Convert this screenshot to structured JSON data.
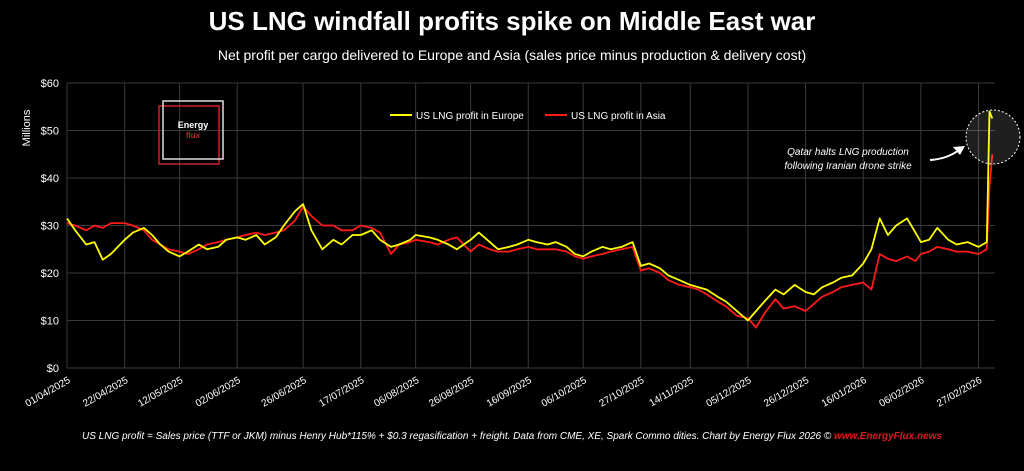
{
  "chart_data": {
    "type": "line",
    "title": "US LNG windfall profits spike on Middle East war",
    "subtitle": "Net profit per cargo delivered to Europe and Asia (sales price minus production & delivery cost)",
    "ylabel": "Millions",
    "ylim": [
      0,
      60
    ],
    "y_ticks": [
      "$0",
      "$10",
      "$20",
      "$30",
      "$40",
      "$50",
      "$60"
    ],
    "x_range": [
      "2025-04-01",
      "2026-03-05"
    ],
    "x_tick_labels": [
      "01/04/2025",
      "22/04/2025",
      "12/05/2025",
      "02/06/2025",
      "26/06/2025",
      "17/07/2025",
      "06/08/2025",
      "26/08/2025",
      "16/09/2025",
      "06/10/2025",
      "27/10/2025",
      "14/11/2025",
      "05/12/2025",
      "26/12/2025",
      "16/01/2026",
      "06/02/2026",
      "27/02/2026"
    ],
    "x_tick_dates": [
      "2025-04-01",
      "2025-04-22",
      "2025-05-12",
      "2025-06-02",
      "2025-06-26",
      "2025-07-17",
      "2025-08-06",
      "2025-08-26",
      "2025-09-16",
      "2025-10-06",
      "2025-10-27",
      "2025-11-14",
      "2025-12-05",
      "2025-12-26",
      "2026-01-16",
      "2026-02-06",
      "2026-02-27"
    ],
    "grid": true,
    "legend_position": "top-center",
    "series": [
      {
        "name": "US LNG profit in Europe",
        "color": "#ffff00",
        "points": [
          [
            "2025-04-01",
            31.5
          ],
          [
            "2025-04-04",
            29
          ],
          [
            "2025-04-08",
            26
          ],
          [
            "2025-04-11",
            26.5
          ],
          [
            "2025-04-14",
            22.8
          ],
          [
            "2025-04-17",
            24
          ],
          [
            "2025-04-22",
            27
          ],
          [
            "2025-04-25",
            28.5
          ],
          [
            "2025-04-29",
            29.5
          ],
          [
            "2025-05-02",
            28
          ],
          [
            "2025-05-05",
            26
          ],
          [
            "2025-05-08",
            24.5
          ],
          [
            "2025-05-12",
            23.5
          ],
          [
            "2025-05-15",
            24.5
          ],
          [
            "2025-05-19",
            26
          ],
          [
            "2025-05-22",
            25
          ],
          [
            "2025-05-26",
            25.5
          ],
          [
            "2025-05-29",
            27
          ],
          [
            "2025-06-02",
            27.5
          ],
          [
            "2025-06-05",
            27
          ],
          [
            "2025-06-09",
            28
          ],
          [
            "2025-06-12",
            26
          ],
          [
            "2025-06-16",
            27.5
          ],
          [
            "2025-06-19",
            30
          ],
          [
            "2025-06-23",
            33
          ],
          [
            "2025-06-26",
            34.5
          ],
          [
            "2025-06-29",
            29
          ],
          [
            "2025-07-03",
            25
          ],
          [
            "2025-07-07",
            27
          ],
          [
            "2025-07-10",
            26
          ],
          [
            "2025-07-14",
            28
          ],
          [
            "2025-07-17",
            28
          ],
          [
            "2025-07-21",
            29
          ],
          [
            "2025-07-24",
            27
          ],
          [
            "2025-07-28",
            25.5
          ],
          [
            "2025-07-31",
            26
          ],
          [
            "2025-08-04",
            27
          ],
          [
            "2025-08-06",
            28
          ],
          [
            "2025-08-11",
            27.5
          ],
          [
            "2025-08-14",
            27
          ],
          [
            "2025-08-18",
            26
          ],
          [
            "2025-08-21",
            25
          ],
          [
            "2025-08-26",
            27
          ],
          [
            "2025-08-29",
            28.5
          ],
          [
            "2025-09-02",
            26.5
          ],
          [
            "2025-09-05",
            25
          ],
          [
            "2025-09-09",
            25.5
          ],
          [
            "2025-09-12",
            26
          ],
          [
            "2025-09-16",
            27
          ],
          [
            "2025-09-19",
            26.5
          ],
          [
            "2025-09-23",
            26
          ],
          [
            "2025-09-26",
            26.5
          ],
          [
            "2025-09-30",
            25.5
          ],
          [
            "2025-10-03",
            24
          ],
          [
            "2025-10-06",
            23.5
          ],
          [
            "2025-10-09",
            24.5
          ],
          [
            "2025-10-13",
            25.5
          ],
          [
            "2025-10-16",
            25
          ],
          [
            "2025-10-20",
            25.5
          ],
          [
            "2025-10-24",
            26.5
          ],
          [
            "2025-10-27",
            21.5
          ],
          [
            "2025-10-30",
            22
          ],
          [
            "2025-11-03",
            21
          ],
          [
            "2025-11-06",
            19.5
          ],
          [
            "2025-11-10",
            18.5
          ],
          [
            "2025-11-14",
            17.5
          ],
          [
            "2025-11-17",
            17
          ],
          [
            "2025-11-20",
            16.5
          ],
          [
            "2025-11-24",
            15
          ],
          [
            "2025-11-27",
            14
          ],
          [
            "2025-12-01",
            12
          ],
          [
            "2025-12-05",
            10
          ],
          [
            "2025-12-08",
            12
          ],
          [
            "2025-12-11",
            14
          ],
          [
            "2025-12-15",
            16.5
          ],
          [
            "2025-12-18",
            15.5
          ],
          [
            "2025-12-22",
            17.5
          ],
          [
            "2025-12-26",
            16
          ],
          [
            "2025-12-29",
            15.5
          ],
          [
            "2026-01-01",
            17
          ],
          [
            "2026-01-05",
            18
          ],
          [
            "2026-01-08",
            19
          ],
          [
            "2026-01-12",
            19.5
          ],
          [
            "2026-01-16",
            22
          ],
          [
            "2026-01-19",
            25
          ],
          [
            "2026-01-22",
            31.5
          ],
          [
            "2026-01-25",
            28
          ],
          [
            "2026-01-28",
            30
          ],
          [
            "2026-02-01",
            31.5
          ],
          [
            "2026-02-04",
            28.5
          ],
          [
            "2026-02-06",
            26.5
          ],
          [
            "2026-02-09",
            27
          ],
          [
            "2026-02-12",
            29.5
          ],
          [
            "2026-02-16",
            27
          ],
          [
            "2026-02-19",
            26
          ],
          [
            "2026-02-23",
            26.5
          ],
          [
            "2026-02-27",
            25.5
          ],
          [
            "2026-03-02",
            26.5
          ],
          [
            "2026-03-03",
            54
          ],
          [
            "2026-03-04",
            52.5
          ]
        ]
      },
      {
        "name": "US LNG profit in Asia",
        "color": "#ff1a1a",
        "points": [
          [
            "2025-04-01",
            30.5
          ],
          [
            "2025-04-04",
            30
          ],
          [
            "2025-04-08",
            29
          ],
          [
            "2025-04-11",
            30
          ],
          [
            "2025-04-14",
            29.5
          ],
          [
            "2025-04-17",
            30.5
          ],
          [
            "2025-04-22",
            30.5
          ],
          [
            "2025-04-25",
            30
          ],
          [
            "2025-04-29",
            29
          ],
          [
            "2025-05-02",
            27
          ],
          [
            "2025-05-05",
            26
          ],
          [
            "2025-05-08",
            25
          ],
          [
            "2025-05-12",
            24.5
          ],
          [
            "2025-05-15",
            24
          ],
          [
            "2025-05-19",
            25
          ],
          [
            "2025-05-22",
            26
          ],
          [
            "2025-05-26",
            26.5
          ],
          [
            "2025-05-29",
            27
          ],
          [
            "2025-06-02",
            27.5
          ],
          [
            "2025-06-05",
            28
          ],
          [
            "2025-06-09",
            28.5
          ],
          [
            "2025-06-12",
            28
          ],
          [
            "2025-06-16",
            28.5
          ],
          [
            "2025-06-19",
            29
          ],
          [
            "2025-06-23",
            31
          ],
          [
            "2025-06-26",
            34
          ],
          [
            "2025-06-29",
            32
          ],
          [
            "2025-07-03",
            30
          ],
          [
            "2025-07-07",
            30
          ],
          [
            "2025-07-10",
            29
          ],
          [
            "2025-07-14",
            29
          ],
          [
            "2025-07-17",
            30
          ],
          [
            "2025-07-21",
            29.5
          ],
          [
            "2025-07-24",
            28.5
          ],
          [
            "2025-07-28",
            24
          ],
          [
            "2025-07-31",
            26
          ],
          [
            "2025-08-04",
            26.5
          ],
          [
            "2025-08-06",
            27
          ],
          [
            "2025-08-11",
            26.5
          ],
          [
            "2025-08-14",
            26
          ],
          [
            "2025-08-18",
            27
          ],
          [
            "2025-08-21",
            27.5
          ],
          [
            "2025-08-26",
            24.5
          ],
          [
            "2025-08-29",
            26
          ],
          [
            "2025-09-02",
            25
          ],
          [
            "2025-09-05",
            24.5
          ],
          [
            "2025-09-09",
            24.5
          ],
          [
            "2025-09-12",
            25
          ],
          [
            "2025-09-16",
            25.5
          ],
          [
            "2025-09-19",
            25
          ],
          [
            "2025-09-23",
            25
          ],
          [
            "2025-09-26",
            25
          ],
          [
            "2025-09-30",
            24.5
          ],
          [
            "2025-10-03",
            23.5
          ],
          [
            "2025-10-06",
            23
          ],
          [
            "2025-10-09",
            23.5
          ],
          [
            "2025-10-13",
            24
          ],
          [
            "2025-10-16",
            24.5
          ],
          [
            "2025-10-20",
            25
          ],
          [
            "2025-10-24",
            25.5
          ],
          [
            "2025-10-27",
            20.5
          ],
          [
            "2025-10-30",
            21
          ],
          [
            "2025-11-03",
            20
          ],
          [
            "2025-11-06",
            18.5
          ],
          [
            "2025-11-10",
            17.5
          ],
          [
            "2025-11-14",
            17
          ],
          [
            "2025-11-17",
            16.5
          ],
          [
            "2025-11-20",
            15.5
          ],
          [
            "2025-11-24",
            14
          ],
          [
            "2025-11-27",
            13
          ],
          [
            "2025-12-01",
            11
          ],
          [
            "2025-12-05",
            10.5
          ],
          [
            "2025-12-08",
            8.5
          ],
          [
            "2025-12-11",
            11.5
          ],
          [
            "2025-12-15",
            14.5
          ],
          [
            "2025-12-18",
            12.5
          ],
          [
            "2025-12-22",
            13
          ],
          [
            "2025-12-26",
            12
          ],
          [
            "2025-12-29",
            13.5
          ],
          [
            "2026-01-01",
            15
          ],
          [
            "2026-01-05",
            16
          ],
          [
            "2026-01-08",
            17
          ],
          [
            "2026-01-12",
            17.5
          ],
          [
            "2026-01-16",
            18
          ],
          [
            "2026-01-19",
            16.5
          ],
          [
            "2026-01-22",
            24
          ],
          [
            "2026-01-25",
            23
          ],
          [
            "2026-01-28",
            22.5
          ],
          [
            "2026-02-01",
            23.5
          ],
          [
            "2026-02-04",
            22.5
          ],
          [
            "2026-02-06",
            24
          ],
          [
            "2026-02-09",
            24.5
          ],
          [
            "2026-02-12",
            25.5
          ],
          [
            "2026-02-16",
            25
          ],
          [
            "2026-02-19",
            24.5
          ],
          [
            "2026-02-23",
            24.5
          ],
          [
            "2026-02-27",
            24
          ],
          [
            "2026-03-02",
            25
          ],
          [
            "2026-03-03",
            38
          ],
          [
            "2026-03-04",
            45
          ]
        ]
      }
    ],
    "annotation": {
      "line1": "Qatar halts LNG production",
      "line2": "following Iranian drone strike"
    }
  },
  "logo": {
    "line1": "Energy",
    "line2": "flux"
  },
  "footer": {
    "note": "US LNG profit = Sales price (TTF or JKM) minus Henry Hub*115% + $0.3 regasification + freight. Data from CME, XE, Spark Commo dities. Chart by Energy Flux 2026 ©",
    "link": "www.EnergyFlux.news"
  },
  "colors": {
    "background": "#000000",
    "grid": "#3a3a3a",
    "europe": "#ffff00",
    "asia": "#ff1a1a",
    "logo_red": "#cc2222"
  }
}
